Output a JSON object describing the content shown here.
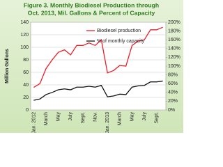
{
  "chart_data": {
    "type": "line",
    "title": [
      "Figure 3. Monthly Biodiesel Production through",
      "Oct. 2013, Mil. Gallons & Percent of Capacity"
    ],
    "y_label": "Million Gallons",
    "categories": [
      "Jan. 2012",
      null,
      "March",
      null,
      "May",
      null,
      "July",
      null,
      "Sept.",
      null,
      "Nov.",
      null,
      "Jan. 2013",
      null,
      "March",
      null,
      "May",
      null,
      "July",
      null,
      "Sept.",
      null
    ],
    "series": [
      {
        "name": "Biodiesel production",
        "color": "#e8202a",
        "values": [
          36,
          42,
          66,
          80,
          92,
          96,
          88,
          103,
          103,
          107,
          103,
          112,
          59,
          63,
          71,
          70,
          103,
          110,
          112,
          128,
          128,
          132
        ]
      },
      {
        "name": "% of monthly capacity",
        "color": "#111111",
        "axis": "y2",
        "values": [
          22,
          25,
          35,
          40,
          46,
          48,
          46,
          52,
          52,
          54,
          52,
          56,
          30,
          32,
          36,
          35,
          52,
          55,
          56,
          64,
          64,
          66
        ]
      }
    ],
    "ylim": [
      0,
      140
    ],
    "yticks": [
      0,
      20,
      40,
      60,
      80,
      100,
      120,
      140
    ],
    "y2lim": [
      0,
      200
    ],
    "y2ticks": [
      {
        "value": 0,
        "label": "0%"
      },
      {
        "value": 20,
        "label": "20%"
      },
      {
        "value": 40,
        "label": "40%"
      },
      {
        "value": 60,
        "label": "60%"
      },
      {
        "value": 80,
        "label": "80%"
      },
      {
        "value": 100,
        "label": "100%"
      },
      {
        "value": 120,
        "label": "120%"
      },
      {
        "value": 140,
        "label": "140%"
      },
      {
        "value": 160,
        "label": "160%"
      },
      {
        "value": 180,
        "label": "180%"
      },
      {
        "value": 200,
        "label": "200%"
      }
    ],
    "grid": true
  }
}
